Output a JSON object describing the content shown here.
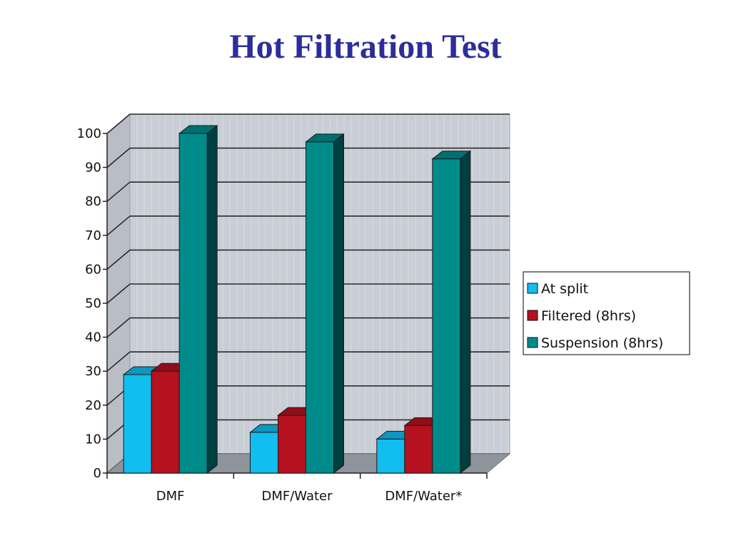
{
  "slide": {
    "title": "Hot Filtration Test"
  },
  "chart_data": {
    "type": "bar",
    "title": "",
    "xlabel": "",
    "ylabel": "",
    "categories": [
      "DMF",
      "DMF/Water",
      "DMF/Water*"
    ],
    "ylim": [
      0,
      100
    ],
    "yticks": [
      0,
      10,
      20,
      30,
      40,
      50,
      60,
      70,
      80,
      90,
      100
    ],
    "grid": true,
    "legend_position": "right",
    "style": "3d-clustered-column",
    "series": [
      {
        "name": "At split",
        "color": "#12bdf0",
        "values": [
          29,
          12,
          10
        ]
      },
      {
        "name": "Filtered (8hrs)",
        "color": "#b5111f",
        "values": [
          30,
          17,
          14
        ]
      },
      {
        "name": "Suspension (8hrs)",
        "color": "#008b8b",
        "values": [
          100,
          97.5,
          92.5
        ]
      }
    ]
  }
}
